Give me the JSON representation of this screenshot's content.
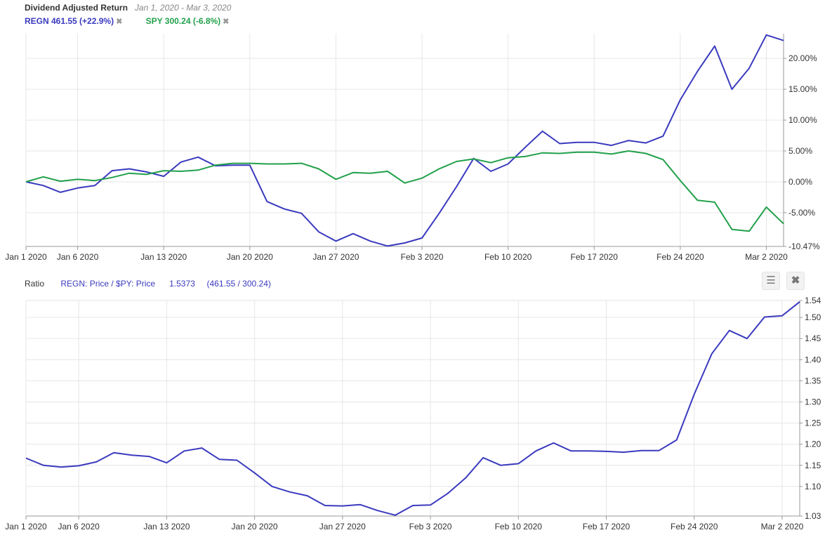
{
  "top_header": {
    "title": "Dividend Adjusted Return",
    "date_range": "Jan 1, 2020 - Mar 3, 2020",
    "legend": [
      {
        "label": "REGN 461.55 (+22.9%)",
        "color": "#3a3abf",
        "remove_icon": "close-icon"
      },
      {
        "label": "SPY 300.24 (-6.8%)",
        "color": "#22a04b",
        "remove_icon": "close-icon"
      }
    ]
  },
  "bottom_header": {
    "title": "Ratio",
    "formula": "REGN: Price / $PY: Price",
    "value": "1.5373",
    "detail": "(461.55 / 300.24)",
    "menu_icon": "hamburger-menu-icon",
    "close_icon": "close-icon"
  },
  "chart_data": [
    {
      "type": "line",
      "title": "Dividend Adjusted Return",
      "x_tick_labels": [
        "Jan 1 2020",
        "Jan 6 2020",
        "Jan 13 2020",
        "Jan 20 2020",
        "Jan 27 2020",
        "Feb 3 2020",
        "Feb 10 2020",
        "Feb 17 2020",
        "Feb 24 2020",
        "Mar 2 2020"
      ],
      "y_tick_labels": [
        "20.00%",
        "15.00%",
        "10.00%",
        "5.00%",
        "0.00%",
        "-5.00%",
        "-10.47%"
      ],
      "ylim": [
        -10.47,
        24
      ],
      "grid": true,
      "series": [
        {
          "name": "REGN",
          "color": "#3a3abf",
          "values": [
            0,
            -0.6,
            -1.7,
            -1.0,
            -0.6,
            1.8,
            2.1,
            1.6,
            0.9,
            3.2,
            4.0,
            2.6,
            2.7,
            2.7,
            -3.2,
            -4.4,
            -5.1,
            -8.1,
            -9.6,
            -8.4,
            -9.6,
            -10.4,
            -9.9,
            -9.1,
            -5.1,
            -0.8,
            3.8,
            1.7,
            2.9,
            5.6,
            8.2,
            6.2,
            6.4,
            6.4,
            5.9,
            6.7,
            6.3,
            7.4,
            13.3,
            17.9,
            22.0,
            15.0,
            18.4,
            23.8,
            22.9
          ]
        },
        {
          "name": "SPY",
          "color": "#22a04b",
          "values": [
            0,
            0.8,
            0.1,
            0.4,
            0.2,
            0.7,
            1.4,
            1.2,
            1.8,
            1.7,
            1.9,
            2.7,
            3.0,
            3.0,
            2.9,
            2.9,
            3.0,
            2.1,
            0.4,
            1.5,
            1.4,
            1.7,
            -0.2,
            0.6,
            2.1,
            3.3,
            3.7,
            3.1,
            3.9,
            4.1,
            4.7,
            4.6,
            4.8,
            4.8,
            4.5,
            5.0,
            4.6,
            3.6,
            0.2,
            -3.0,
            -3.3,
            -7.7,
            -8.0,
            -4.1,
            -6.8
          ]
        }
      ]
    },
    {
      "type": "line",
      "title": "Ratio",
      "x_tick_labels": [
        "Jan 1 2020",
        "Jan 6 2020",
        "Jan 13 2020",
        "Jan 20 2020",
        "Jan 27 2020",
        "Feb 3 2020",
        "Feb 10 2020",
        "Feb 17 2020",
        "Feb 24 2020",
        "Mar 2 2020"
      ],
      "y_tick_labels": [
        "1.54",
        "1.50",
        "1.45",
        "1.40",
        "1.35",
        "1.30",
        "1.25",
        "1.20",
        "1.15",
        "1.10",
        "1.03"
      ],
      "ylim": [
        1.03,
        1.54
      ],
      "grid": true,
      "series": [
        {
          "name": "REGN: Price / $PY: Price",
          "color": "#3a3abf",
          "values": [
            1.167,
            1.15,
            1.146,
            1.149,
            1.158,
            1.18,
            1.174,
            1.171,
            1.156,
            1.184,
            1.191,
            1.164,
            1.162,
            1.132,
            1.1,
            1.087,
            1.078,
            1.055,
            1.054,
            1.057,
            1.043,
            1.032,
            1.055,
            1.056,
            1.084,
            1.12,
            1.168,
            1.15,
            1.154,
            1.184,
            1.203,
            1.184,
            1.184,
            1.183,
            1.181,
            1.185,
            1.185,
            1.21,
            1.318,
            1.414,
            1.469,
            1.45,
            1.501,
            1.504,
            1.537
          ]
        }
      ]
    }
  ]
}
